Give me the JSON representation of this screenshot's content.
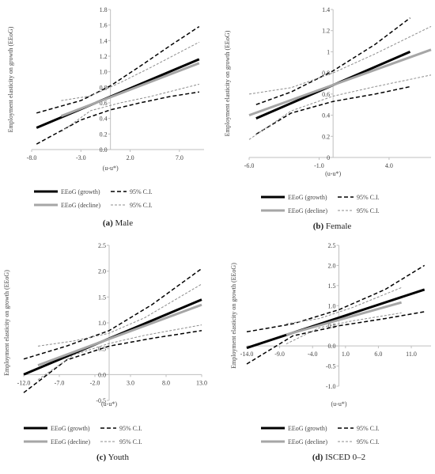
{
  "legend_labels": {
    "growth": "EEoG (growth)",
    "decline": "EEoG (decline)",
    "ci": "95% C.I."
  },
  "colors": {
    "growth": "#000000",
    "decline": "#a6a6a6",
    "ci_decline": "#8c8c8c",
    "axis": "#bfbfbf"
  },
  "chart_data": [
    {
      "type": "line",
      "caption_letter": "(a)",
      "caption_text": " Male",
      "xlabel": "(u-u*)",
      "ylabel": "Employment elasticity on growth (EEoG)",
      "xlim": [
        -8,
        9.5
      ],
      "ylim": [
        0,
        1.8
      ],
      "xticks": [
        "-8.0",
        "-3.0",
        "2.0",
        "7.0"
      ],
      "xtick_values": [
        -8,
        -3,
        2,
        7
      ],
      "yticks": [
        "0.0",
        "0.2",
        "0.4",
        "0.6",
        "0.8",
        "1.0",
        "1.2",
        "1.4",
        "1.6",
        "1.8"
      ],
      "ytick_values": [
        0,
        0.2,
        0.4,
        0.6,
        0.8,
        1.0,
        1.2,
        1.4,
        1.6,
        1.8
      ],
      "series": [
        {
          "role": "growth",
          "x": [
            -7.5,
            9.0
          ],
          "y": [
            0.28,
            1.16
          ]
        },
        {
          "role": "growth_ci_upper",
          "x": [
            -7.5,
            -3,
            0,
            3,
            6,
            9.0
          ],
          "y": [
            0.47,
            0.63,
            0.82,
            1.07,
            1.33,
            1.58
          ]
        },
        {
          "role": "growth_ci_lower",
          "x": [
            -7.5,
            -3,
            0,
            3,
            6,
            9.0
          ],
          "y": [
            0.07,
            0.38,
            0.51,
            0.6,
            0.68,
            0.74
          ]
        },
        {
          "role": "decline",
          "x": [
            -5.0,
            9.0
          ],
          "y": [
            0.43,
            1.11
          ]
        },
        {
          "role": "decline_ci_upper",
          "x": [
            -5.0,
            -2,
            1,
            4,
            9.0
          ],
          "y": [
            0.63,
            0.69,
            0.86,
            1.05,
            1.38
          ]
        },
        {
          "role": "decline_ci_lower",
          "x": [
            -5.0,
            -2,
            1,
            4,
            9.0
          ],
          "y": [
            0.23,
            0.5,
            0.6,
            0.68,
            0.84
          ]
        }
      ]
    },
    {
      "type": "line",
      "caption_letter": "(b)",
      "caption_text": " Female",
      "xlabel": "(u-u*)",
      "ylabel": "Employment elasticity on growth (EEoG)",
      "xlim": [
        -6,
        7
      ],
      "ylim": [
        0,
        1.4
      ],
      "xticks": [
        "-6.0",
        "-1.0",
        "4.0"
      ],
      "xtick_values": [
        -6,
        -1,
        4
      ],
      "yticks": [
        "0",
        "0.2",
        "0.4",
        "0.6",
        "0.8",
        "1",
        "1.2",
        "1.4"
      ],
      "ytick_values": [
        0,
        0.2,
        0.4,
        0.6,
        0.8,
        1.0,
        1.2,
        1.4
      ],
      "series": [
        {
          "role": "growth",
          "x": [
            -5.5,
            5.5
          ],
          "y": [
            0.37,
            1.0
          ]
        },
        {
          "role": "growth_ci_upper",
          "x": [
            -5.5,
            -3,
            0,
            3,
            5.5
          ],
          "y": [
            0.5,
            0.62,
            0.82,
            1.07,
            1.32
          ]
        },
        {
          "role": "growth_ci_lower",
          "x": [
            -5.5,
            -3,
            0,
            3,
            5.5
          ],
          "y": [
            0.22,
            0.42,
            0.53,
            0.6,
            0.67
          ]
        },
        {
          "role": "decline",
          "x": [
            -6.0,
            7.0
          ],
          "y": [
            0.4,
            1.02
          ]
        },
        {
          "role": "decline_ci_upper",
          "x": [
            -6.0,
            -3,
            0,
            3,
            7.0
          ],
          "y": [
            0.6,
            0.66,
            0.8,
            0.98,
            1.24
          ]
        },
        {
          "role": "decline_ci_lower",
          "x": [
            -6.0,
            -3,
            0,
            3,
            7.0
          ],
          "y": [
            0.17,
            0.44,
            0.58,
            0.67,
            0.78
          ]
        }
      ]
    },
    {
      "type": "line",
      "caption_letter": "(c)",
      "caption_text": " Youth",
      "xlabel": "(u-u*)",
      "ylabel": "Employment elasticity on growth (EEoG)",
      "xlim": [
        -12,
        13
      ],
      "ylim": [
        -0.5,
        2.5
      ],
      "xticks": [
        "-12.0",
        "-7.0",
        "-2.0",
        "3.0",
        "8.0",
        "13.0"
      ],
      "xtick_values": [
        -12,
        -7,
        -2,
        3,
        8,
        13
      ],
      "yticks": [
        "-0.5",
        "0.0",
        "0.5",
        "1.0",
        "1.5",
        "2.0",
        "2.5"
      ],
      "ytick_values": [
        -0.5,
        0,
        0.5,
        1.0,
        1.5,
        2.0,
        2.5
      ],
      "series": [
        {
          "role": "growth",
          "x": [
            -12.0,
            13.0
          ],
          "y": [
            0.0,
            1.45
          ]
        },
        {
          "role": "growth_ci_upper",
          "x": [
            -12.0,
            -6,
            0,
            6,
            13.0
          ],
          "y": [
            0.3,
            0.55,
            0.85,
            1.35,
            2.05
          ]
        },
        {
          "role": "growth_ci_lower",
          "x": [
            -12.0,
            -6,
            0,
            6,
            13.0
          ],
          "y": [
            -0.35,
            0.28,
            0.55,
            0.7,
            0.85
          ]
        },
        {
          "role": "decline",
          "x": [
            -10.0,
            13.0
          ],
          "y": [
            0.18,
            1.35
          ]
        },
        {
          "role": "decline_ci_upper",
          "x": [
            -10.0,
            -5,
            0,
            5,
            13.0
          ],
          "y": [
            0.55,
            0.65,
            0.8,
            1.1,
            1.75
          ]
        },
        {
          "role": "decline_ci_lower",
          "x": [
            -10.0,
            -5,
            0,
            5,
            13.0
          ],
          "y": [
            -0.1,
            0.38,
            0.6,
            0.76,
            0.96
          ]
        }
      ]
    },
    {
      "type": "line",
      "caption_letter": "(d)",
      "caption_text": " ISCED 0–2",
      "xlabel": "(u-u*)",
      "ylabel": "Employment elasticity on growth (EEoG)",
      "xlim": [
        -14,
        14
      ],
      "ylim": [
        -1.0,
        2.5
      ],
      "xticks": [
        "-14.0",
        "-9.0",
        "-4.0",
        "1.0",
        "6.0",
        "11.0"
      ],
      "xtick_values": [
        -14,
        -9,
        -4,
        1,
        6,
        11
      ],
      "yticks": [
        "-1.0",
        "-0.5",
        "0.0",
        "0.5",
        "1.0",
        "1.5",
        "2.0",
        "2.5"
      ],
      "ytick_values": [
        -1.0,
        -0.5,
        0,
        0.5,
        1.0,
        1.5,
        2.0,
        2.5
      ],
      "series": [
        {
          "role": "growth",
          "x": [
            -14.0,
            13.0
          ],
          "y": [
            -0.05,
            1.4
          ]
        },
        {
          "role": "growth_ci_upper",
          "x": [
            -14.0,
            -7,
            0,
            7,
            13.0
          ],
          "y": [
            0.35,
            0.55,
            0.9,
            1.4,
            2.0
          ]
        },
        {
          "role": "growth_ci_lower",
          "x": [
            -14.0,
            -7,
            0,
            7,
            13.0
          ],
          "y": [
            -0.45,
            0.25,
            0.5,
            0.68,
            0.85
          ]
        },
        {
          "role": "decline",
          "x": [
            -8.0,
            9.5
          ],
          "y": [
            0.28,
            1.08
          ]
        },
        {
          "role": "decline_ci_upper",
          "x": [
            -8.0,
            -3,
            2,
            9.5
          ],
          "y": [
            0.55,
            0.68,
            0.95,
            1.45
          ]
        },
        {
          "role": "decline_ci_lower",
          "x": [
            -8.0,
            -3,
            2,
            9.5
          ],
          "y": [
            0.05,
            0.45,
            0.62,
            0.82
          ]
        }
      ]
    }
  ]
}
